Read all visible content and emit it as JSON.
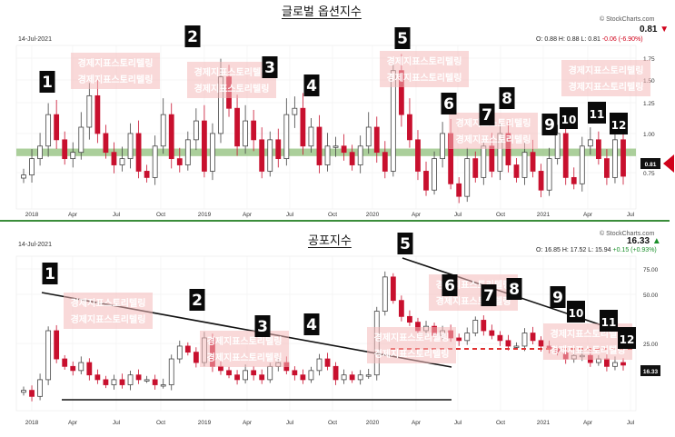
{
  "chart_data": [
    {
      "type": "candlestick",
      "title": "글로벌 옵션지수",
      "date_label": "14-Jul-2021",
      "source": "© StockCharts.com",
      "last_value": "0.81",
      "ohlc": {
        "open": "O: 0.88",
        "high": "H: 0.88",
        "low": "L: 0.81",
        "change": "-0.06 (-6.90%)"
      },
      "x_ticks": [
        "2018",
        "Apr",
        "Jul",
        "Oct",
        "2019",
        "Apr",
        "Jul",
        "Oct",
        "2020",
        "Apr",
        "Jul",
        "Oct",
        "2021",
        "Apr",
        "Jul"
      ],
      "y_ticks": [
        "1.75",
        "1.50",
        "1.25",
        "1.00",
        "0.75"
      ],
      "ylim": [
        0.55,
        1.85
      ],
      "price_tag": "0.81",
      "support_band": [
        0.97,
        1.03
      ],
      "watermark": "경제지표스토리텔링",
      "markers": [
        "1",
        "2",
        "3",
        "4",
        "5",
        "6",
        "7",
        "8",
        "9",
        "10",
        "11",
        "12"
      ],
      "series": [
        {
          "color_up": "#444444",
          "color_down": "#c8102e",
          "close": [
            0.82,
            0.95,
            1.05,
            1.3,
            1.1,
            0.95,
            1.0,
            1.2,
            1.45,
            1.15,
            1.0,
            0.9,
            0.95,
            1.15,
            0.85,
            0.8,
            1.05,
            1.3,
            0.95,
            0.9,
            1.1,
            1.25,
            0.85,
            1.15,
            1.6,
            1.35,
            1.05,
            1.25,
            1.1,
            0.85,
            1.1,
            0.95,
            1.3,
            1.35,
            1.05,
            1.2,
            0.9,
            1.05,
            1.05,
            1.0,
            0.9,
            1.05,
            1.2,
            1.0,
            0.85,
            1.65,
            1.3,
            1.1,
            0.85,
            0.7,
            0.95,
            1.15,
            0.75,
            0.65,
            0.95,
            0.8,
            1.05,
            0.85,
            1.15,
            0.9,
            0.8,
            1.0,
            0.85,
            0.7,
            0.95,
            1.15,
            0.8,
            0.75,
            1.05,
            1.1,
            0.95,
            0.8,
            1.1,
            0.81
          ]
        }
      ]
    },
    {
      "type": "candlestick",
      "title": "공포지수",
      "date_label": "14-Jul-2021",
      "source": "© StockCharts.com",
      "last_value": "16.33",
      "ohlc": {
        "open": "O: 16.85",
        "high": "H: 17.52",
        "low": "L: 15.94",
        "change": "+0.15 (+0.93%)"
      },
      "x_ticks": [
        "2018",
        "Apr",
        "Jul",
        "Oct",
        "2019",
        "Apr",
        "Jul",
        "Oct",
        "2020",
        "Apr",
        "Jul",
        "Oct",
        "2021",
        "Apr",
        "Jul"
      ],
      "y_ticks": [
        "75.00",
        "50.00",
        "25.00"
      ],
      "y_scale": "log",
      "ylim": [
        8,
        90
      ],
      "price_tag": "16.33",
      "watermark": "경제지표스토리텔링",
      "markers": [
        "1",
        "2",
        "3",
        "4",
        "5",
        "6",
        "7",
        "8",
        "9",
        "10",
        "11",
        "12"
      ],
      "series": [
        {
          "color_up": "#444444",
          "color_down": "#c8102e",
          "close": [
            11,
            10,
            13,
            28,
            18,
            16,
            15,
            17,
            14,
            13,
            12,
            13,
            12,
            14,
            13,
            13,
            12,
            12,
            18,
            22,
            20,
            17,
            25,
            16,
            15,
            14,
            13,
            15,
            14,
            13,
            16,
            17,
            15,
            14,
            13,
            15,
            18,
            16,
            13,
            14,
            13,
            14,
            14,
            38,
            65,
            45,
            35,
            32,
            28,
            30,
            26,
            28,
            25,
            24,
            27,
            33,
            28,
            26,
            24,
            22,
            22,
            27,
            24,
            22,
            21,
            20,
            18,
            19,
            19,
            17,
            18,
            16,
            17,
            16.33
          ]
        }
      ]
    }
  ]
}
